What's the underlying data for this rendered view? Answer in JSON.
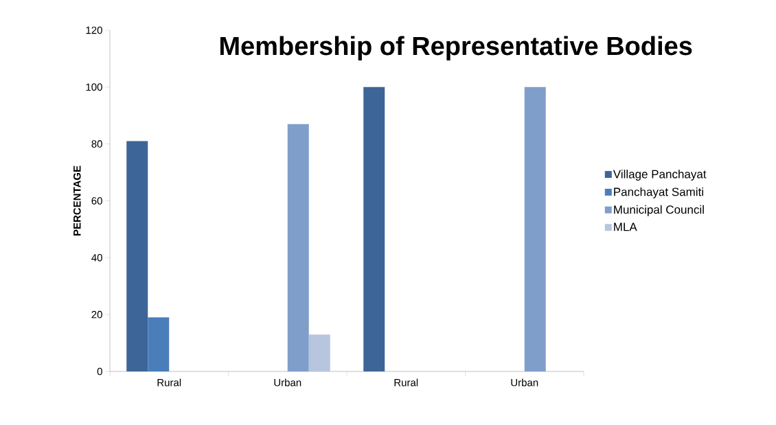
{
  "chart_data": {
    "type": "bar",
    "title": "Membership of Representative Bodies",
    "ylabel": "PERCENTAGE",
    "categories": [
      "Rural",
      "Urban",
      "Rural",
      "Urban"
    ],
    "series": [
      {
        "name": "Village Panchayat",
        "color": "#3d6597",
        "values": [
          81,
          0,
          100,
          0
        ]
      },
      {
        "name": "Panchayat Samiti",
        "color": "#4a7ebb",
        "values": [
          19,
          0,
          0,
          0
        ]
      },
      {
        "name": "Municipal Council",
        "color": "#7f9fca",
        "values": [
          0,
          87,
          0,
          100
        ]
      },
      {
        "name": "MLA",
        "color": "#b7c6de",
        "values": [
          0,
          13,
          0,
          0
        ]
      }
    ],
    "ylim": [
      0,
      120
    ],
    "yticks": [
      0,
      20,
      40,
      60,
      80,
      100,
      120
    ],
    "grid": false,
    "legend": "right"
  }
}
